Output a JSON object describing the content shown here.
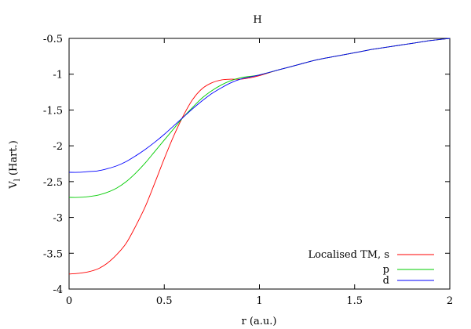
{
  "chart_data": {
    "type": "line",
    "title": "H",
    "xlabel": "r (a.u.)",
    "ylabel_main": "V",
    "ylabel_sub": "l",
    "ylabel_suffix": " (Hart.)",
    "xlim": [
      0,
      2
    ],
    "ylim": [
      -4,
      -0.5
    ],
    "x_ticks": [
      {
        "value": 0,
        "label": "0"
      },
      {
        "value": 0.5,
        "label": "0.5"
      },
      {
        "value": 1,
        "label": "1"
      },
      {
        "value": 1.5,
        "label": "1.5"
      },
      {
        "value": 2,
        "label": "2"
      }
    ],
    "y_ticks": [
      {
        "value": -0.5,
        "label": "-0.5"
      },
      {
        "value": -1,
        "label": "-1"
      },
      {
        "value": -1.5,
        "label": "-1.5"
      },
      {
        "value": -2,
        "label": "-2"
      },
      {
        "value": -2.5,
        "label": "-2.5"
      },
      {
        "value": -3,
        "label": "-3"
      },
      {
        "value": -3.5,
        "label": "-3.5"
      },
      {
        "value": -4,
        "label": "-4"
      }
    ],
    "legend_position": "bottom-right",
    "series": [
      {
        "name": "Localised TM, s",
        "color": "#ff0000",
        "x": [
          0,
          0.05,
          0.1,
          0.15,
          0.2,
          0.25,
          0.3,
          0.35,
          0.4,
          0.45,
          0.5,
          0.55,
          0.6,
          0.65,
          0.7,
          0.75,
          0.8,
          0.85,
          0.9,
          0.95,
          1.0,
          1.1,
          1.2,
          1.3,
          1.4,
          1.5,
          1.6,
          1.7,
          1.8,
          1.9,
          2.0
        ],
        "y": [
          -3.79,
          -3.78,
          -3.76,
          -3.72,
          -3.64,
          -3.52,
          -3.36,
          -3.12,
          -2.85,
          -2.52,
          -2.18,
          -1.86,
          -1.58,
          -1.35,
          -1.2,
          -1.12,
          -1.08,
          -1.07,
          -1.07,
          -1.05,
          -1.02,
          -0.94,
          -0.87,
          -0.8,
          -0.75,
          -0.7,
          -0.65,
          -0.61,
          -0.57,
          -0.53,
          -0.5
        ]
      },
      {
        "name": "p",
        "color": "#00cc00",
        "x": [
          0,
          0.05,
          0.1,
          0.15,
          0.2,
          0.25,
          0.3,
          0.35,
          0.4,
          0.45,
          0.5,
          0.55,
          0.6,
          0.65,
          0.7,
          0.75,
          0.8,
          0.85,
          0.9,
          0.95,
          1.0,
          1.1,
          1.2,
          1.3,
          1.4,
          1.5,
          1.6,
          1.7,
          1.8,
          1.9,
          2.0
        ],
        "y": [
          -2.72,
          -2.72,
          -2.71,
          -2.69,
          -2.65,
          -2.59,
          -2.5,
          -2.38,
          -2.24,
          -2.08,
          -1.92,
          -1.76,
          -1.6,
          -1.46,
          -1.33,
          -1.23,
          -1.15,
          -1.09,
          -1.05,
          -1.03,
          -1.01,
          -0.94,
          -0.87,
          -0.8,
          -0.75,
          -0.7,
          -0.65,
          -0.61,
          -0.57,
          -0.53,
          -0.5
        ]
      },
      {
        "name": "d",
        "color": "#0000ff",
        "x": [
          0,
          0.05,
          0.1,
          0.15,
          0.2,
          0.25,
          0.3,
          0.35,
          0.4,
          0.45,
          0.5,
          0.55,
          0.6,
          0.65,
          0.7,
          0.75,
          0.8,
          0.85,
          0.9,
          0.95,
          1.0,
          1.1,
          1.2,
          1.3,
          1.4,
          1.5,
          1.6,
          1.7,
          1.8,
          1.9,
          2.0
        ],
        "y": [
          -2.37,
          -2.37,
          -2.36,
          -2.35,
          -2.32,
          -2.28,
          -2.22,
          -2.14,
          -2.05,
          -1.95,
          -1.84,
          -1.72,
          -1.6,
          -1.48,
          -1.37,
          -1.27,
          -1.19,
          -1.12,
          -1.07,
          -1.04,
          -1.01,
          -0.94,
          -0.87,
          -0.8,
          -0.75,
          -0.7,
          -0.65,
          -0.61,
          -0.57,
          -0.53,
          -0.5
        ]
      }
    ]
  }
}
